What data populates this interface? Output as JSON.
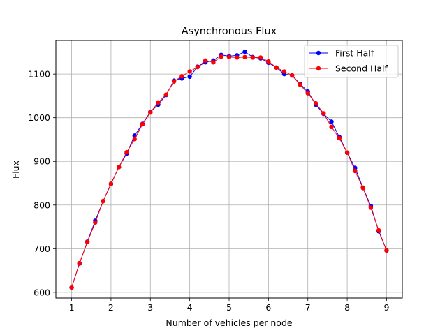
{
  "chart_data": {
    "type": "line",
    "title": "Asynchronous Flux",
    "xlabel": "Number of vehicles per node",
    "ylabel": "Flux",
    "xlim": [
      0.6,
      9.4
    ],
    "ylim": [
      587,
      1177
    ],
    "xticks": [
      1,
      2,
      3,
      4,
      5,
      6,
      7,
      8,
      9
    ],
    "yticks": [
      600,
      700,
      800,
      900,
      1000,
      1100
    ],
    "grid": true,
    "legend_position": "top-right",
    "x": [
      1.0,
      1.2,
      1.4,
      1.6,
      1.8,
      2.0,
      2.2,
      2.4,
      2.6,
      2.8,
      3.0,
      3.2,
      3.4,
      3.6,
      3.8,
      4.0,
      4.2,
      4.4,
      4.6,
      4.8,
      5.0,
      5.2,
      5.4,
      5.6,
      5.8,
      6.0,
      6.2,
      6.4,
      6.6,
      6.8,
      7.0,
      7.2,
      7.4,
      7.6,
      7.8,
      8.0,
      8.2,
      8.4,
      8.6,
      8.8,
      9.0
    ],
    "series": [
      {
        "name": "First Half",
        "color": "#0000ff",
        "values": [
          611,
          666,
          716,
          764,
          809,
          848,
          887,
          918,
          959,
          986,
          1013,
          1030,
          1052,
          1085,
          1090,
          1094,
          1117,
          1127,
          1131,
          1144,
          1141,
          1143,
          1151,
          1139,
          1136,
          1126,
          1115,
          1100,
          1097,
          1078,
          1060,
          1030,
          1009,
          991,
          956,
          920,
          885,
          840,
          798,
          740,
          696
        ]
      },
      {
        "name": "Second Half",
        "color": "#ff0000",
        "values": [
          611,
          667,
          715,
          760,
          809,
          849,
          887,
          921,
          951,
          985,
          1012,
          1035,
          1053,
          1083,
          1095,
          1106,
          1116,
          1131,
          1127,
          1140,
          1139,
          1138,
          1139,
          1138,
          1138,
          1129,
          1115,
          1106,
          1097,
          1076,
          1056,
          1033,
          1010,
          979,
          953,
          920,
          878,
          839,
          794,
          742,
          696
        ]
      }
    ]
  }
}
